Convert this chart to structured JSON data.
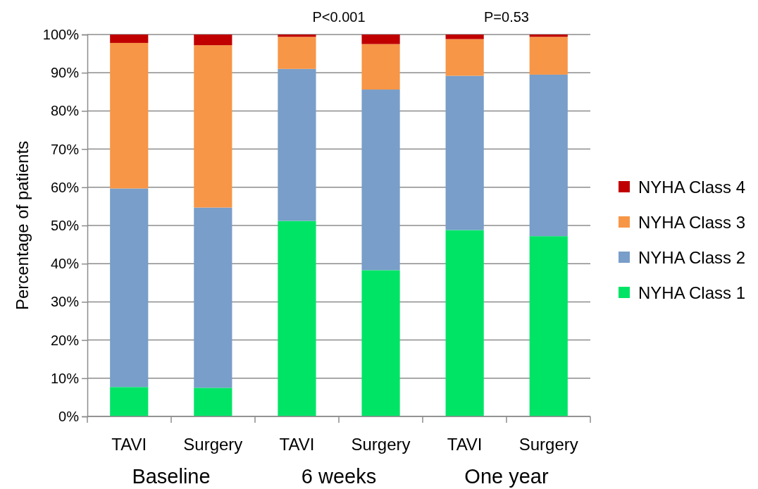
{
  "chart_data": {
    "type": "bar",
    "stacked": true,
    "ylabel": "Percentage of patients",
    "categories": [
      "TAVI",
      "Surgery",
      "TAVI",
      "Surgery",
      "TAVI",
      "Surgery"
    ],
    "series": [
      {
        "name": "NYHA Class 1",
        "color": "#00e466",
        "values": [
          7.7,
          7.5,
          51.2,
          38.3,
          48.8,
          47.2
        ]
      },
      {
        "name": "NYHA Class 2",
        "color": "#789ec9",
        "values": [
          52,
          47.2,
          39.8,
          47.3,
          40.4,
          42.3
        ]
      },
      {
        "name": "NYHA Class 3",
        "color": "#f79646",
        "values": [
          38.1,
          42.5,
          8.4,
          11.9,
          9.6,
          9.9
        ]
      },
      {
        "name": "NYHA Class 4",
        "color": "#c00000",
        "values": [
          2.2,
          2.8,
          0.6,
          2.5,
          1.2,
          0.6
        ]
      }
    ],
    "ylim": [
      0,
      100
    ],
    "yticks": [
      {
        "value": 0,
        "label": "0%"
      },
      {
        "value": 10,
        "label": "10%"
      },
      {
        "value": 20,
        "label": "20%"
      },
      {
        "value": 30,
        "label": "30%"
      },
      {
        "value": 40,
        "label": "40%"
      },
      {
        "value": 50,
        "label": "50%"
      },
      {
        "value": 60,
        "label": "60%"
      },
      {
        "value": 70,
        "label": "70%"
      },
      {
        "value": 80,
        "label": "80%"
      },
      {
        "value": 90,
        "label": "90%"
      },
      {
        "value": 100,
        "label": "100%"
      }
    ],
    "grid": "y",
    "legend": "right",
    "annotations": [
      "Baseline",
      "6 weeks",
      "One year",
      "P<0.001",
      "P=0.53"
    ]
  }
}
